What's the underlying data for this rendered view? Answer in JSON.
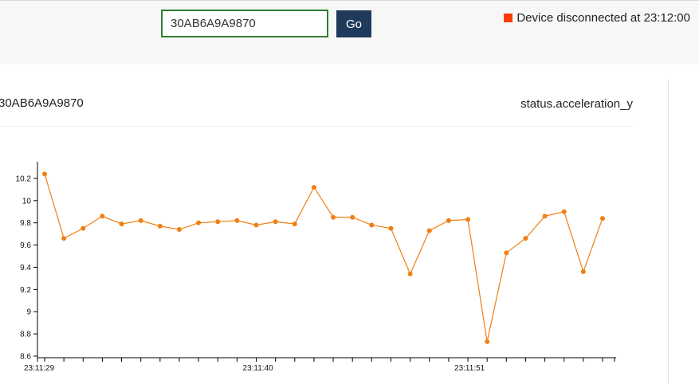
{
  "toolbar": {
    "device_input_value": "30AB6A9A9870",
    "go_label": "Go",
    "status_text": "Device disconnected at 23:12:00",
    "status_color": "#ff3a0a"
  },
  "panel": {
    "device_id": "30AB6A9A9870",
    "field_name": "status.acceleration_y"
  },
  "chart_data": {
    "type": "line",
    "title": "",
    "xlabel": "",
    "ylabel": "",
    "series_color": "#f07f14",
    "ylim": [
      8.6,
      10.35
    ],
    "yticks": [
      "10.2",
      "10",
      "9.8",
      "9.6",
      "9.4",
      "9.2",
      "9",
      "8.8",
      "8.6"
    ],
    "xticks": [
      {
        "label": "23:11:29",
        "index": 0
      },
      {
        "label": "23:11:40",
        "index": 11
      },
      {
        "label": "23:11:51",
        "index": 22
      }
    ],
    "x": [
      "23:11:29",
      "23:11:30",
      "23:11:31",
      "23:11:32",
      "23:11:33",
      "23:11:34",
      "23:11:35",
      "23:11:36",
      "23:11:37",
      "23:11:38",
      "23:11:39",
      "23:11:40",
      "23:11:41",
      "23:11:42",
      "23:11:43",
      "23:11:44",
      "23:11:45",
      "23:11:46",
      "23:11:47",
      "23:11:48",
      "23:11:49",
      "23:11:50",
      "23:11:51",
      "23:11:52",
      "23:11:53",
      "23:11:54",
      "23:11:55",
      "23:11:56",
      "23:11:57",
      "23:11:58"
    ],
    "series": [
      {
        "values": [
          10.24,
          9.66,
          9.75,
          9.86,
          9.79,
          9.82,
          9.77,
          9.74,
          9.8,
          9.81,
          9.82,
          9.78,
          9.81,
          9.79,
          10.12,
          9.85,
          9.85,
          9.78,
          9.75,
          9.34,
          9.73,
          9.82,
          9.83,
          8.73,
          9.53,
          9.66,
          9.86,
          9.9,
          9.36,
          9.84
        ]
      }
    ]
  }
}
